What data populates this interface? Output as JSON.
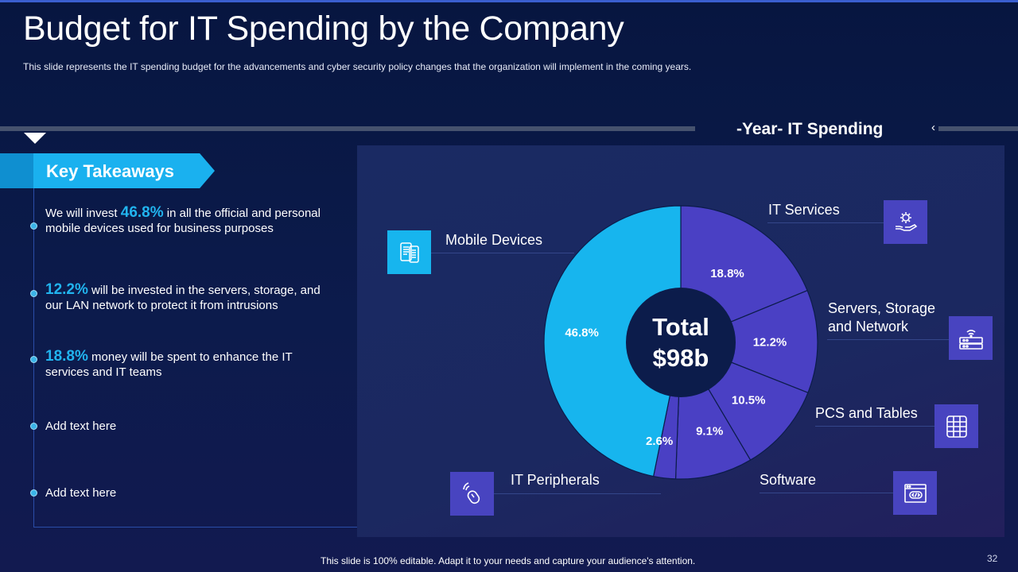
{
  "title": "Budget for IT Spending by the Company",
  "subtitle": "This slide represents the IT spending budget for the advancements  and cyber security policy changes that the organization will implement in the coming years.",
  "takeaways": {
    "heading": "Key Takeaways",
    "items": [
      {
        "before": "We will invest ",
        "highlight": "46.8%",
        "after": " in all the official and personal mobile devices used for business purposes"
      },
      {
        "before": "",
        "highlight": "12.2%",
        "after": " will be invested in the servers, storage, and our LAN network to protect it from intrusions"
      },
      {
        "before": "",
        "highlight": "18.8%",
        "after": " money will be spent to enhance the IT services and IT  teams"
      },
      {
        "before": "",
        "highlight": "",
        "after": "Add text here"
      },
      {
        "before": "",
        "highlight": "",
        "after": "Add text here"
      }
    ]
  },
  "chart_data": {
    "type": "pie",
    "title": "-Year- IT Spending",
    "center_label": [
      "Total",
      "$98b"
    ],
    "categories": [
      "IT Services",
      "Servers, Storage and Network",
      "PCS and Tables",
      "Software",
      "IT Peripherals",
      "Mobile Devices"
    ],
    "values": [
      18.8,
      12.2,
      10.5,
      9.1,
      2.6,
      46.8
    ],
    "value_labels": [
      "18.8%",
      "12.2%",
      "10.5%",
      "9.1%",
      "2.6%",
      "46.8%"
    ],
    "colors": [
      "#4a40c4",
      "#4a40c4",
      "#4a40c4",
      "#4a40c4",
      "#4a40c4",
      "#17b5ee"
    ]
  },
  "category_labels": {
    "it_services": "IT Services",
    "servers_line1": "Servers, Storage",
    "servers_line2": "and Network",
    "pcs": "PCS and Tables",
    "software": "Software",
    "peripherals": "IT Peripherals",
    "mobile": "Mobile Devices"
  },
  "icons": {
    "it_services": "gear-hand-icon",
    "servers": "router-icon",
    "pcs": "tablet-grid-icon",
    "software": "code-window-icon",
    "peripherals": "mouse-icon",
    "mobile": "mobile-devices-icon"
  },
  "colors": {
    "accent": "#17b5ee",
    "purple": "#4a40c4",
    "background": "#0b1a45"
  },
  "footer": "This slide is 100% editable. Adapt it to your needs and capture your audience's attention.",
  "page_number": "32"
}
